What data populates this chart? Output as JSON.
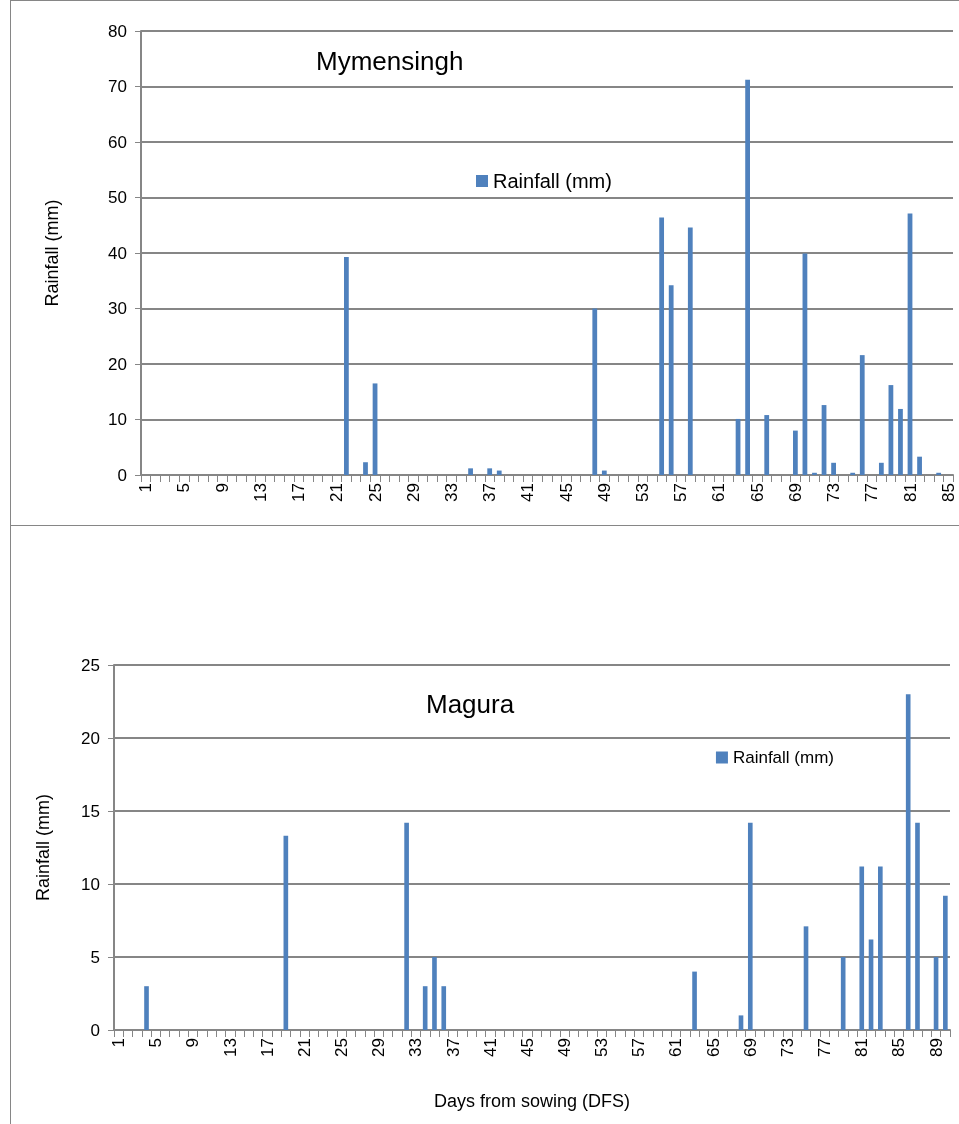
{
  "chart_data": [
    {
      "type": "bar",
      "title": "Mymensingh",
      "ylabel": "Rainfall (mm)",
      "categories": [
        "1",
        null,
        null,
        null,
        "5",
        null,
        null,
        null,
        "9",
        null,
        null,
        null,
        "13",
        null,
        null,
        null,
        "17",
        null,
        null,
        null,
        "21",
        null,
        null,
        null,
        "25",
        null,
        null,
        null,
        "29",
        null,
        null,
        null,
        "33",
        null,
        null,
        null,
        "37",
        null,
        null,
        null,
        "41",
        null,
        null,
        null,
        "45",
        null,
        null,
        null,
        "49",
        null,
        null,
        null,
        "53",
        null,
        null,
        null,
        "57",
        null,
        null,
        null,
        "61",
        null,
        null,
        null,
        "65",
        null,
        null,
        null,
        "69",
        null,
        null,
        null,
        "73",
        null,
        null,
        null,
        "77",
        null,
        null,
        null,
        "81",
        null,
        null,
        null,
        "85"
      ],
      "series": [
        {
          "name": "Rainfall (mm)",
          "color": "#4f81bd",
          "values": [
            0,
            0,
            0,
            0,
            0,
            0,
            0,
            0,
            0,
            0,
            0,
            0,
            0,
            0,
            0,
            0,
            0,
            0,
            0,
            0,
            0,
            39.3,
            0,
            2.3,
            16.5,
            0,
            0,
            0,
            0,
            0,
            0,
            0,
            0,
            0,
            1.2,
            0,
            1.2,
            0.8,
            0,
            0,
            0,
            0,
            0,
            0,
            0,
            0,
            0,
            30,
            0.8,
            0,
            0,
            0,
            0,
            0,
            46.4,
            34.2,
            0,
            44.6,
            0,
            0,
            0,
            0,
            10.1,
            71.2,
            0,
            10.8,
            0,
            0,
            8,
            39.9,
            0.4,
            12.6,
            2.2,
            0,
            0.4,
            21.6,
            0,
            2.2,
            16.2,
            11.9,
            47.1,
            3.3,
            0,
            0.4,
            0
          ]
        }
      ],
      "ylim": [
        0,
        80
      ],
      "yticks": [
        0,
        10,
        20,
        30,
        40,
        50,
        60,
        70,
        80
      ],
      "grid": "y",
      "legend": "top"
    },
    {
      "type": "bar",
      "title": "Magura",
      "ylabel": "Rainfall (mm)",
      "xlabel": "Days from sowing (DFS)",
      "categories": [
        "1",
        null,
        null,
        null,
        "5",
        null,
        null,
        null,
        "9",
        null,
        null,
        null,
        "13",
        null,
        null,
        null,
        "17",
        null,
        null,
        null,
        "21",
        null,
        null,
        null,
        "25",
        null,
        null,
        null,
        "29",
        null,
        null,
        null,
        "33",
        null,
        null,
        null,
        "37",
        null,
        null,
        null,
        "41",
        null,
        null,
        null,
        "45",
        null,
        null,
        null,
        "49",
        null,
        null,
        null,
        "53",
        null,
        null,
        null,
        "57",
        null,
        null,
        null,
        "61",
        null,
        null,
        null,
        "65",
        null,
        null,
        null,
        "69",
        null,
        null,
        null,
        "73",
        null,
        null,
        null,
        "77",
        null,
        null,
        null,
        "81",
        null,
        null,
        null,
        "85",
        null,
        null,
        null,
        "89",
        null
      ],
      "series": [
        {
          "name": "Rainfall (mm)",
          "color": "#4f81bd",
          "values": [
            0,
            0,
            0,
            3,
            0,
            0,
            0,
            0,
            0,
            0,
            0,
            0,
            0,
            0,
            0,
            0,
            0,
            0,
            13.3,
            0,
            0,
            0,
            0,
            0,
            0,
            0,
            0,
            0,
            0,
            0,
            0,
            14.2,
            0,
            3,
            5,
            3,
            0,
            0,
            0,
            0,
            0,
            0,
            0,
            0,
            0,
            0,
            0,
            0,
            0,
            0,
            0,
            0,
            0,
            0,
            0,
            0,
            0,
            0,
            0,
            0,
            0,
            0,
            4,
            0,
            0,
            0,
            0,
            1,
            14.2,
            0,
            0,
            0,
            0,
            0,
            7.1,
            0,
            0,
            0,
            5,
            0,
            11.2,
            6.2,
            11.2,
            0,
            0,
            23,
            14.2,
            0,
            5,
            9.2
          ]
        }
      ],
      "ylim": [
        0,
        25
      ],
      "yticks": [
        0,
        5,
        10,
        15,
        20,
        25
      ],
      "grid": "y",
      "legend": "top right"
    }
  ]
}
